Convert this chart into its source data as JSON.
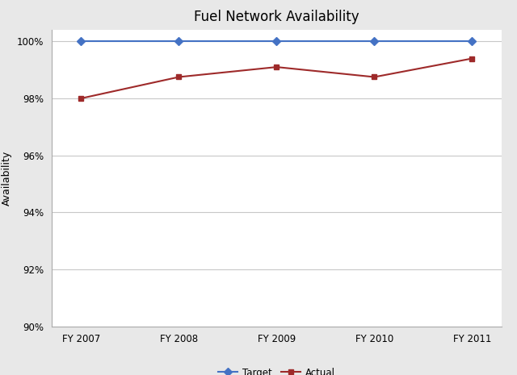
{
  "title": "Fuel Network Availability",
  "categories": [
    "FY 2007",
    "FY 2008",
    "FY 2009",
    "FY 2010",
    "FY 2011"
  ],
  "target_values": [
    1.0,
    1.0,
    1.0,
    1.0,
    1.0
  ],
  "actual_values": [
    0.98,
    0.9875,
    0.991,
    0.9875,
    0.994
  ],
  "ylim": [
    0.9,
    1.004
  ],
  "yticks": [
    0.9,
    0.92,
    0.94,
    0.96,
    0.98,
    1.0
  ],
  "target_color": "#4472C4",
  "actual_color": "#9E2A2A",
  "plot_bg_color": "#FFFFFF",
  "fig_bg_color": "#E8E8E8",
  "grid_color": "#C8C8C8",
  "spine_color": "#AAAAAA",
  "ylabel": "Availability",
  "target_label": "Target",
  "actual_label": "Actual",
  "title_fontsize": 12,
  "axis_fontsize": 9,
  "tick_fontsize": 8.5,
  "legend_fontsize": 8.5
}
